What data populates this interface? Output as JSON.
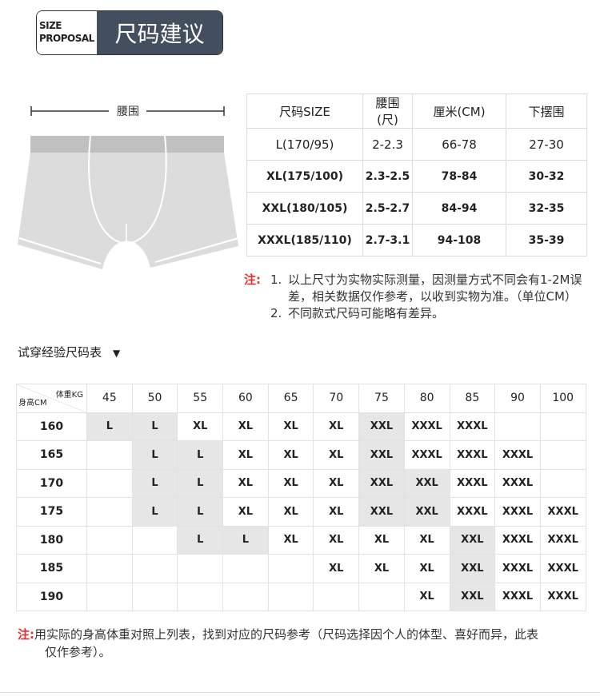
{
  "header": {
    "badge_en_line1": "SIZE",
    "badge_en_line2": "PROPOSAL",
    "title": "尺码建议"
  },
  "diagram": {
    "waist_label": "腰围",
    "colors": {
      "waistband": "#c0c0c0",
      "body": "#dcdcdc"
    }
  },
  "size_table": {
    "headers": [
      "尺码SIZE",
      "腰围 (尺)",
      "厘米(CM)",
      "下摆围"
    ],
    "rows": [
      [
        "L(170/95)",
        "2-2.3",
        "66-78",
        "27-30"
      ],
      [
        "XL(175/100)",
        "2.3-2.5",
        "78-84",
        "30-32"
      ],
      [
        "XXL(180/105)",
        "2.5-2.7",
        "84-94",
        "32-35"
      ],
      [
        "XXXL(185/110)",
        "2.7-3.1",
        "94-108",
        "35-39"
      ]
    ]
  },
  "notes": {
    "label": "注:",
    "items": [
      {
        "num": "1.",
        "text": "以上尺寸为实物实际测量，因测量方式不同会有1-2M误差，相关数据仅作参考，以收到实物为准。（单位CM）"
      },
      {
        "num": "2.",
        "text": "不同款式尺码可能略有差异。"
      }
    ]
  },
  "fit_chart": {
    "title": "试穿经验尺码表",
    "title_icon": "triangle-down-icon",
    "corner_weight": "体重KG",
    "corner_height": "身高CM",
    "weights": [
      "45",
      "50",
      "55",
      "60",
      "65",
      "70",
      "75",
      "80",
      "85",
      "90",
      "100"
    ],
    "highlight_color": "#e6e6e6",
    "rows": [
      {
        "height": "160",
        "cells": [
          "L",
          "L",
          "XL",
          "XL",
          "XL",
          "XL",
          "XXL",
          "XXXL",
          "XXXL",
          "",
          ""
        ],
        "highlight": [
          0,
          1,
          6
        ]
      },
      {
        "height": "165",
        "cells": [
          "",
          "L",
          "L",
          "XL",
          "XL",
          "XL",
          "XXL",
          "XXXL",
          "XXXL",
          "XXXL",
          ""
        ],
        "highlight": [
          1,
          2,
          6
        ]
      },
      {
        "height": "170",
        "cells": [
          "",
          "L",
          "L",
          "XL",
          "XL",
          "XL",
          "XXL",
          "XXL",
          "XXXL",
          "XXXL",
          ""
        ],
        "highlight": [
          1,
          2,
          6,
          7
        ]
      },
      {
        "height": "175",
        "cells": [
          "",
          "L",
          "L",
          "XL",
          "XL",
          "XL",
          "XXL",
          "XXL",
          "XXXL",
          "XXXL",
          "XXXL"
        ],
        "highlight": [
          1,
          2,
          6,
          7
        ]
      },
      {
        "height": "180",
        "cells": [
          "",
          "",
          "L",
          "L",
          "XL",
          "XL",
          "XL",
          "XL",
          "XXL",
          "XXXL",
          "XXXL"
        ],
        "highlight": [
          2,
          3,
          8
        ]
      },
      {
        "height": "185",
        "cells": [
          "",
          "",
          "",
          "",
          "",
          "XL",
          "XL",
          "XL",
          "XXL",
          "XXXL",
          "XXXL"
        ],
        "highlight": [
          8
        ]
      },
      {
        "height": "190",
        "cells": [
          "",
          "",
          "",
          "",
          "",
          "",
          "",
          "XL",
          "XXL",
          "XXXL",
          "XXXL"
        ],
        "highlight": [
          8
        ]
      }
    ]
  },
  "footer": {
    "label": "注:",
    "text": "用实际的身高体重对照上列表，找到对应的尺码参考（尺码选择因个人的体型、喜好而异，此表",
    "text2": "仅作参考）。"
  }
}
